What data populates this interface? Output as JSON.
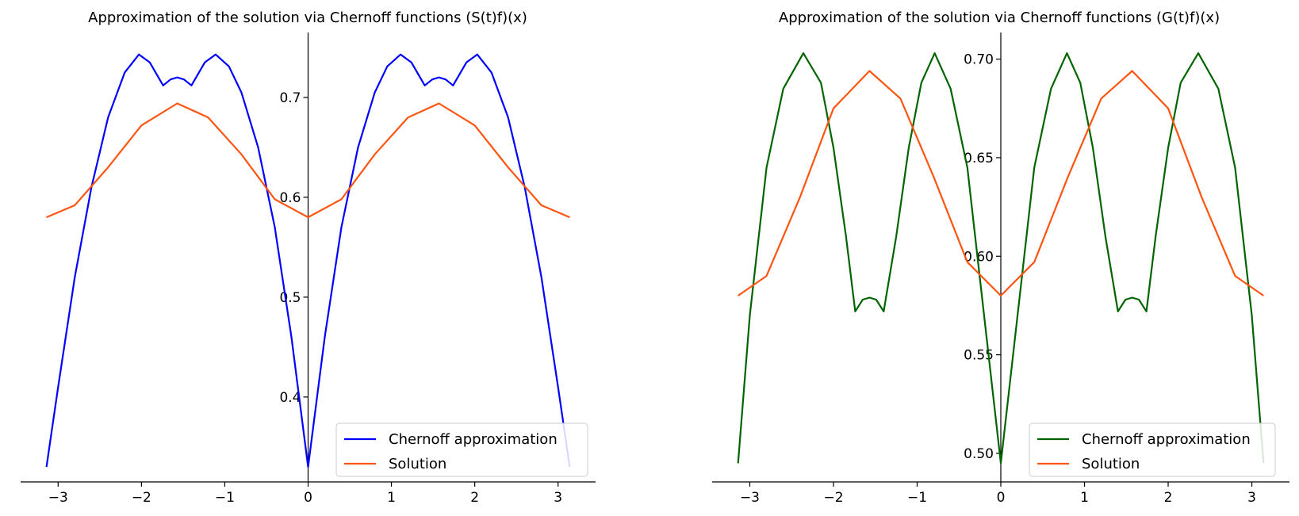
{
  "chart_data": [
    {
      "type": "line",
      "title": "Approximation of the solution via Chernoff functions (S(t)f)(x)",
      "xlabel": "",
      "ylabel": "",
      "xlim": [
        -3.45,
        3.45
      ],
      "ylim": [
        0.315,
        0.765
      ],
      "xticks": [
        -3,
        -2,
        -1,
        0,
        1,
        2,
        3
      ],
      "xtick_labels": [
        "−3",
        "−2",
        "−1",
        "0",
        "1",
        "2",
        "3"
      ],
      "yticks": [
        0.4,
        0.5,
        0.6,
        0.7
      ],
      "ytick_labels": [
        "0.4",
        "0.5",
        "0.6",
        "0.7"
      ],
      "axis_style": "centered spines at x=0",
      "grid": false,
      "legend": {
        "position": "lower-right"
      },
      "series": [
        {
          "name": "Chernoff approximation",
          "color": "#0000ff",
          "x": [
            -3.14,
            -3.0,
            -2.8,
            -2.6,
            -2.4,
            -2.2,
            -2.03,
            -1.9,
            -1.74,
            -1.65,
            -1.57,
            -1.49,
            -1.4,
            -1.24,
            -1.11,
            -0.95,
            -0.8,
            -0.6,
            -0.4,
            -0.2,
            0.0,
            0.2,
            0.4,
            0.6,
            0.8,
            0.95,
            1.11,
            1.24,
            1.4,
            1.49,
            1.57,
            1.65,
            1.74,
            1.9,
            2.03,
            2.2,
            2.4,
            2.6,
            2.8,
            3.0,
            3.14
          ],
          "y": [
            0.33,
            0.41,
            0.52,
            0.61,
            0.68,
            0.725,
            0.743,
            0.735,
            0.712,
            0.718,
            0.72,
            0.718,
            0.712,
            0.735,
            0.743,
            0.731,
            0.705,
            0.65,
            0.57,
            0.46,
            0.33,
            0.46,
            0.57,
            0.65,
            0.705,
            0.731,
            0.743,
            0.735,
            0.712,
            0.718,
            0.72,
            0.718,
            0.712,
            0.735,
            0.743,
            0.725,
            0.68,
            0.61,
            0.52,
            0.41,
            0.33
          ]
        },
        {
          "name": "Solution",
          "color": "#ff5511",
          "x": [
            -3.14,
            -2.8,
            -2.4,
            -2.0,
            -1.57,
            -1.2,
            -0.8,
            -0.4,
            0.0,
            0.4,
            0.8,
            1.2,
            1.57,
            2.0,
            2.4,
            2.8,
            3.14
          ],
          "y": [
            0.58,
            0.592,
            0.63,
            0.672,
            0.694,
            0.68,
            0.643,
            0.598,
            0.58,
            0.598,
            0.643,
            0.68,
            0.694,
            0.672,
            0.63,
            0.592,
            0.58
          ]
        }
      ]
    },
    {
      "type": "line",
      "title": "Approximation of the solution via Chernoff functions (G(t)f)(x)",
      "xlabel": "",
      "ylabel": "",
      "xlim": [
        -3.45,
        3.45
      ],
      "ylim": [
        0.4855,
        0.7135
      ],
      "xticks": [
        -3,
        -2,
        -1,
        0,
        1,
        2,
        3
      ],
      "xtick_labels": [
        "−3",
        "−2",
        "−1",
        "0",
        "1",
        "2",
        "3"
      ],
      "yticks": [
        0.5,
        0.55,
        0.6,
        0.65,
        0.7
      ],
      "ytick_labels": [
        "0.50",
        "0.55",
        "0.60",
        "0.65",
        "0.70"
      ],
      "axis_style": "centered spines at x=0",
      "grid": false,
      "legend": {
        "position": "lower-right"
      },
      "series": [
        {
          "name": "Chernoff approximation",
          "color": "#006400",
          "x": [
            -3.14,
            -3.0,
            -2.8,
            -2.6,
            -2.36,
            -2.15,
            -2.0,
            -1.85,
            -1.74,
            -1.65,
            -1.57,
            -1.49,
            -1.4,
            -1.25,
            -1.1,
            -0.95,
            -0.79,
            -0.6,
            -0.4,
            -0.2,
            0.0,
            0.2,
            0.4,
            0.6,
            0.79,
            0.95,
            1.1,
            1.25,
            1.4,
            1.49,
            1.57,
            1.65,
            1.74,
            1.85,
            2.0,
            2.15,
            2.36,
            2.6,
            2.8,
            3.0,
            3.14
          ],
          "y": [
            0.495,
            0.57,
            0.645,
            0.685,
            0.703,
            0.688,
            0.655,
            0.61,
            0.572,
            0.578,
            0.579,
            0.578,
            0.572,
            0.61,
            0.655,
            0.688,
            0.703,
            0.685,
            0.645,
            0.57,
            0.495,
            0.57,
            0.645,
            0.685,
            0.703,
            0.688,
            0.655,
            0.61,
            0.572,
            0.578,
            0.579,
            0.578,
            0.572,
            0.61,
            0.655,
            0.688,
            0.703,
            0.685,
            0.645,
            0.57,
            0.495
          ]
        },
        {
          "name": "Solution",
          "color": "#ff5511",
          "x": [
            -3.14,
            -2.8,
            -2.4,
            -2.0,
            -1.57,
            -1.2,
            -0.8,
            -0.4,
            0.0,
            0.4,
            0.8,
            1.2,
            1.57,
            2.0,
            2.4,
            2.8,
            3.14
          ],
          "y": [
            0.58,
            0.59,
            0.63,
            0.675,
            0.694,
            0.68,
            0.64,
            0.597,
            0.58,
            0.597,
            0.64,
            0.68,
            0.694,
            0.675,
            0.63,
            0.59,
            0.58
          ]
        }
      ]
    }
  ]
}
